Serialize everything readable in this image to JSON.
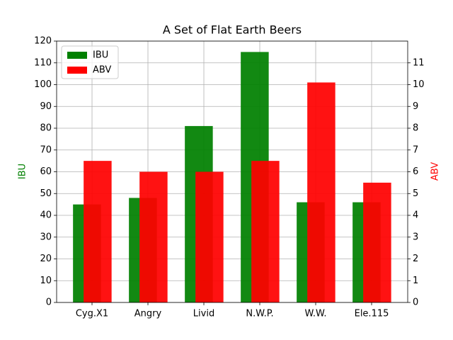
{
  "chart_data": {
    "type": "bar",
    "title": "A Set of Flat Earth Beers",
    "categories": [
      "Cyg.X1",
      "Angry",
      "Livid",
      "N.W.P.",
      "W.W.",
      "Ele.115"
    ],
    "series": [
      {
        "name": "IBU",
        "color": "#008000",
        "values": [
          45,
          48,
          81,
          115,
          46,
          46
        ]
      },
      {
        "name": "ABV",
        "color": "#ff0000",
        "axis": "y2",
        "values": [
          6.5,
          6.0,
          6.0,
          6.5,
          10.1,
          5.5
        ]
      }
    ],
    "ylabel": "IBU",
    "y2label": "ABV",
    "ylim": [
      0,
      120
    ],
    "yticks": [
      0,
      10,
      20,
      30,
      40,
      50,
      60,
      70,
      80,
      90,
      100,
      110,
      120
    ],
    "y2lim": [
      0,
      12
    ],
    "y2ticks": [
      0,
      1,
      2,
      3,
      4,
      5,
      6,
      7,
      8,
      9,
      10,
      11
    ],
    "grid": true,
    "legend": "upper left"
  }
}
